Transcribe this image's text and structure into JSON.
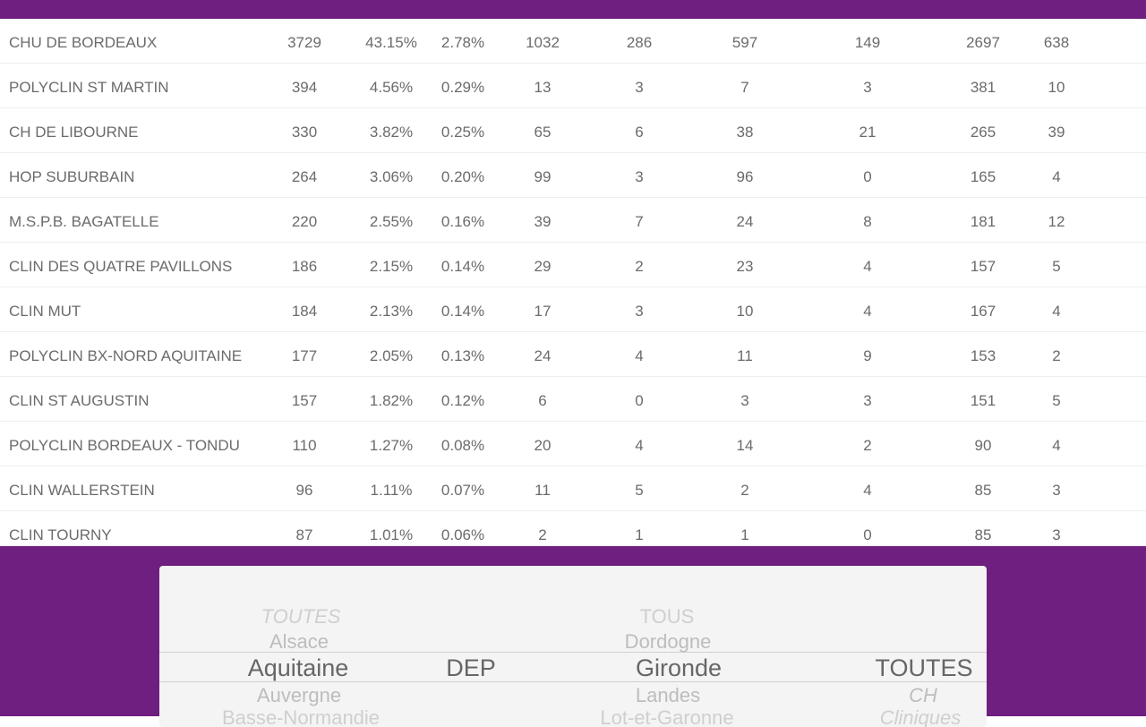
{
  "table": {
    "rows": [
      [
        "CHU DE BORDEAUX",
        "3729",
        "43.15%",
        "2.78%",
        "1032",
        "286",
        "597",
        "149",
        "2697",
        "638"
      ],
      [
        "POLYCLIN ST MARTIN",
        "394",
        "4.56%",
        "0.29%",
        "13",
        "3",
        "7",
        "3",
        "381",
        "10"
      ],
      [
        "CH DE LIBOURNE",
        "330",
        "3.82%",
        "0.25%",
        "65",
        "6",
        "38",
        "21",
        "265",
        "39"
      ],
      [
        "HOP SUBURBAIN",
        "264",
        "3.06%",
        "0.20%",
        "99",
        "3",
        "96",
        "0",
        "165",
        "4"
      ],
      [
        "M.S.P.B. BAGATELLE",
        "220",
        "2.55%",
        "0.16%",
        "39",
        "7",
        "24",
        "8",
        "181",
        "12"
      ],
      [
        "CLIN DES QUATRE PAVILLONS",
        "186",
        "2.15%",
        "0.14%",
        "29",
        "2",
        "23",
        "4",
        "157",
        "5"
      ],
      [
        "CLIN MUT",
        "184",
        "2.13%",
        "0.14%",
        "17",
        "3",
        "10",
        "4",
        "167",
        "4"
      ],
      [
        "POLYCLIN BX-NORD AQUITAINE",
        "177",
        "2.05%",
        "0.13%",
        "24",
        "4",
        "11",
        "9",
        "153",
        "2"
      ],
      [
        "CLIN ST AUGUSTIN",
        "157",
        "1.82%",
        "0.12%",
        "6",
        "0",
        "3",
        "3",
        "151",
        "5"
      ],
      [
        "POLYCLIN BORDEAUX - TONDU",
        "110",
        "1.27%",
        "0.08%",
        "20",
        "4",
        "14",
        "2",
        "90",
        "4"
      ],
      [
        "CLIN WALLERSTEIN",
        "96",
        "1.11%",
        "0.07%",
        "11",
        "5",
        "2",
        "4",
        "85",
        "3"
      ],
      [
        "CLIN TOURNY",
        "87",
        "1.01%",
        "0.06%",
        "2",
        "1",
        "1",
        "0",
        "85",
        "3"
      ]
    ]
  },
  "picker": {
    "region": {
      "above2": "TOUTES",
      "above1": "Alsace",
      "selected": "Aquitaine",
      "below1": "Auvergne",
      "below2": "Basse-Normandie"
    },
    "scope": {
      "selected": "DEP"
    },
    "department": {
      "above2": "TOUS",
      "above1": "Dordogne",
      "selected": "Gironde",
      "below1": "Landes",
      "below2": "Lot-et-Garonne"
    },
    "type": {
      "selected": "TOUTES",
      "below1": "CH",
      "below2": "Cliniques"
    }
  },
  "colors": {
    "brand_purple": "#6e1f80",
    "text_gray": "#6b6b6b"
  }
}
